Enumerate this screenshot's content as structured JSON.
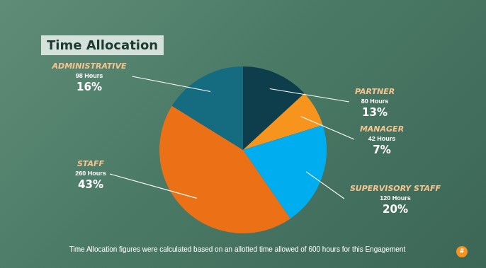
{
  "chart_data": {
    "type": "pie",
    "title": "Time Allocation",
    "footnote": "Time Allocation figures were calculated based on an allotted time allowed of 600 hours for this Engagement",
    "categories": [
      "PARTNER",
      "MANAGER",
      "SUPERVISORY STAFF",
      "STAFF",
      "ADMINISTRATIVE"
    ],
    "values": [
      13,
      7,
      20,
      43,
      16
    ],
    "value_labels": [
      "13%",
      "7%",
      "20%",
      "43%",
      "16%"
    ],
    "hours_labels": [
      "80 Hours",
      "42 Hours",
      "120 Hours",
      "260 Hours",
      "98 Hours"
    ],
    "colors": [
      "#0e3d4c",
      "#f7941d",
      "#00aeef",
      "#ec7116",
      "#156b80"
    ],
    "data_labels": true
  },
  "page_number": "#"
}
